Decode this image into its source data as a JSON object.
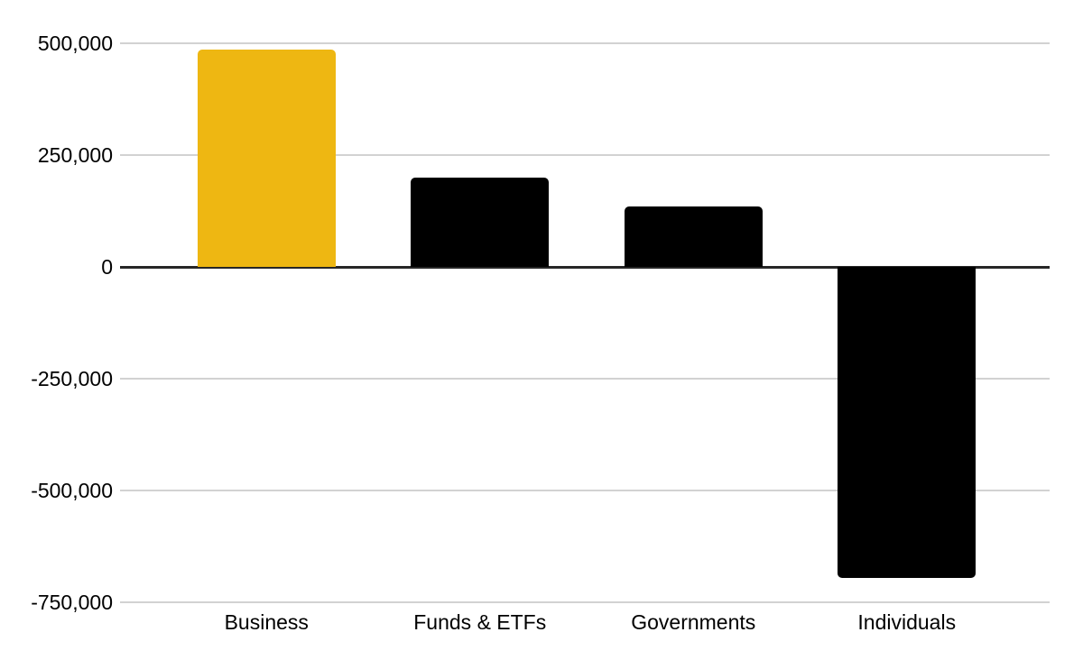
{
  "chart_data": {
    "type": "bar",
    "categories": [
      "Business",
      "Funds & ETFs",
      "Governments",
      "Individuals"
    ],
    "values": [
      485000,
      200000,
      135000,
      -695000
    ],
    "bar_colors": [
      "#EEB712",
      "#000000",
      "#000000",
      "#000000"
    ],
    "title": "",
    "xlabel": "",
    "ylabel": "",
    "ylim": [
      -750000,
      500000
    ],
    "y_ticks": [
      {
        "value": 500000,
        "label": "500,000"
      },
      {
        "value": 250000,
        "label": "250,000"
      },
      {
        "value": 0,
        "label": "0"
      },
      {
        "value": -250000,
        "label": "-250,000"
      },
      {
        "value": -500000,
        "label": "-500,000"
      },
      {
        "value": -750000,
        "label": "-750,000"
      }
    ],
    "grid": "horizontal-on",
    "legend": "none",
    "colors": {
      "highlight_bar": "#EEB712",
      "default_bar": "#000000",
      "gridline": "#D2D2D2",
      "zero_line": "#262626",
      "text": "#000000",
      "background": "#FFFFFF"
    }
  }
}
